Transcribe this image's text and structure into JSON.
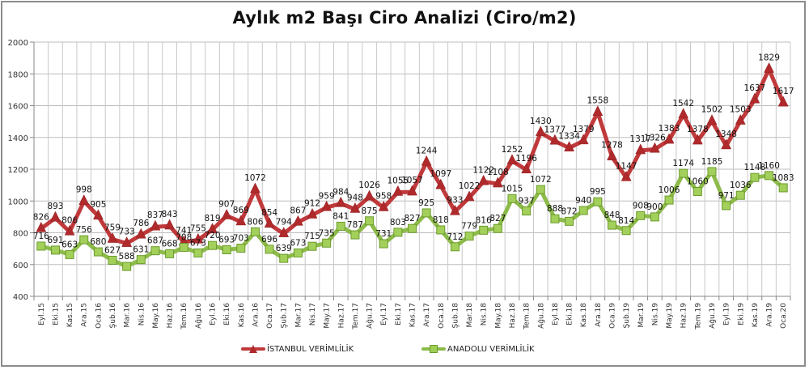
{
  "chart_data": {
    "type": "line",
    "title": "Aylık m2 Başı Ciro Analizi (Ciro/m2)",
    "xlabel": "",
    "ylabel": "",
    "ylim": [
      400,
      2000
    ],
    "yticks": [
      400,
      600,
      800,
      1000,
      1200,
      1400,
      1600,
      1800,
      2000
    ],
    "grid": true,
    "legend_position": "bottom",
    "categories": [
      "Eyl.15",
      "Eki.15",
      "Kas.15",
      "Ara.15",
      "Oca.16",
      "Şub.16",
      "Mar.16",
      "Nis.16",
      "May.16",
      "Haz.16",
      "Tem.16",
      "Ağu.16",
      "Eyl.16",
      "Eki.16",
      "Kas.16",
      "Ara.16",
      "Oca.17",
      "Şub.17",
      "Mar.17",
      "Nis.17",
      "May.17",
      "Haz.17",
      "Tem.17",
      "Ağu.17",
      "Eyl.17",
      "Eki.17",
      "Kas.17",
      "Ara.17",
      "Oca.18",
      "Şub.18",
      "Mar.18",
      "Nis.18",
      "May.18",
      "Haz.18",
      "Tem.18",
      "Ağu.18",
      "Eyl.18",
      "Eki.18",
      "Kas.18",
      "Ara.18",
      "Oca.19",
      "Şub.19",
      "Mar.19",
      "Nis.19",
      "May.19",
      "Haz.19",
      "Tem.19",
      "Ağu.19",
      "Eyl.19",
      "Eki.19",
      "Kas.19",
      "Ara.19",
      "Oca.20"
    ],
    "series": [
      {
        "name": "İSTANBUL VERİMLİLİK",
        "color": "#c0393b",
        "marker": "triangle",
        "values": [
          826,
          893,
          806,
          998,
          905,
          759,
          733,
          786,
          837,
          843,
          741,
          755,
          819,
          907,
          869,
          1072,
          854,
          794,
          867,
          912,
          959,
          984,
          948,
          1026,
          958,
          1055,
          1057,
          1244,
          1097,
          933,
          1022,
          1122,
          1108,
          1252,
          1196,
          1430,
          1377,
          1334,
          1379,
          1558,
          1278,
          1147,
          1317,
          1326,
          1383,
          1542,
          1378,
          1502,
          1348,
          1503,
          1637,
          1829,
          1617
        ]
      },
      {
        "name": "ANADOLU VERİMLİLİK",
        "color": "#8dbb4a",
        "marker": "square",
        "values": [
          716,
          691,
          663,
          756,
          680,
          627,
          588,
          631,
          687,
          668,
          708,
          673,
          720,
          693,
          703,
          806,
          696,
          639,
          673,
          715,
          735,
          841,
          787,
          875,
          731,
          803,
          827,
          925,
          818,
          712,
          779,
          816,
          827,
          1015,
          937,
          1072,
          888,
          872,
          940,
          995,
          848,
          814,
          908,
          900,
          1006,
          1174,
          1060,
          1185,
          971,
          1036,
          1148,
          1160,
          1083
        ]
      }
    ]
  },
  "legend": {
    "istanbul_label": "İSTANBUL VERİMLİLİK",
    "anadolu_label": "ANADOLU VERİMLİLİK"
  }
}
